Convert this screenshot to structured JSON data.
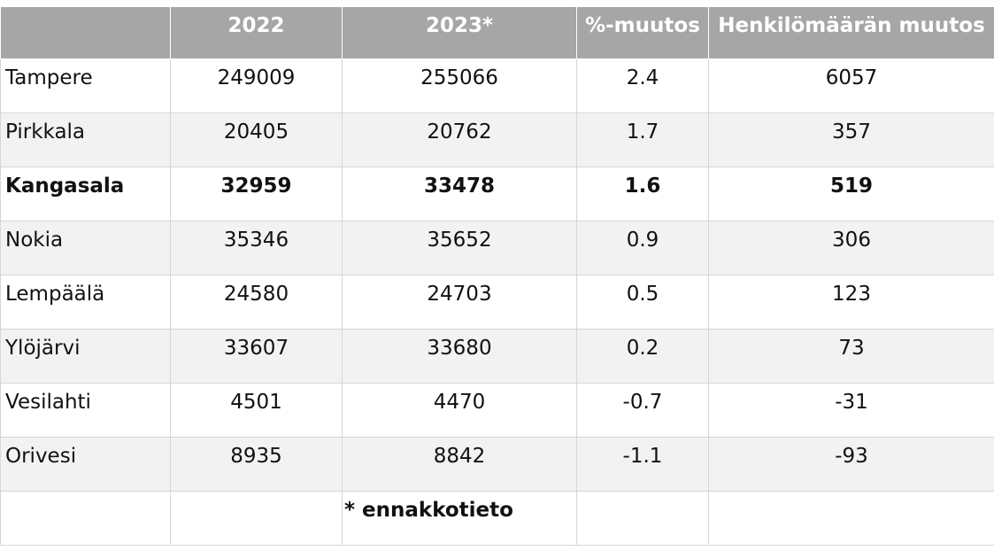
{
  "table": {
    "header": [
      "2022",
      "2023*",
      "%-muutos",
      "Henkilömäärän muutos"
    ],
    "rows": [
      {
        "name": "Tampere",
        "values": [
          249009,
          255066,
          2.4,
          6057
        ]
      },
      {
        "name": "Pirkkala",
        "values": [
          20405,
          20762,
          1.7,
          357
        ]
      },
      {
        "name": "Kangasala",
        "values": [
          32959,
          33478,
          1.6,
          519
        ],
        "bold": true
      },
      {
        "name": "Nokia",
        "values": [
          35346,
          35652,
          0.9,
          306
        ]
      },
      {
        "name": "Lempäälä",
        "values": [
          24580,
          24703,
          0.5,
          123
        ]
      },
      {
        "name": "Ylöjärvi",
        "values": [
          33607,
          33680,
          0.2,
          73
        ]
      },
      {
        "name": "Vesilahti",
        "values": [
          4501,
          4470,
          -0.7,
          -31
        ]
      },
      {
        "name": "Orivesi",
        "values": [
          8935,
          8842,
          -1.1,
          -93
        ]
      }
    ],
    "footnote": "* ennakkotieto"
  }
}
